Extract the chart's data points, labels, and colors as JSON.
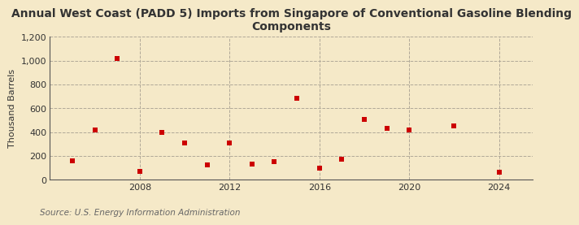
{
  "title": "Annual West Coast (PADD 5) Imports from Singapore of Conventional Gasoline Blending\nComponents",
  "ylabel": "Thousand Barrels",
  "source": "Source: U.S. Energy Information Administration",
  "background_color": "#f5e9c8",
  "plot_bg_color": "#f5e9c8",
  "marker_color": "#cc0000",
  "years": [
    2005,
    2006,
    2007,
    2008,
    2009,
    2010,
    2011,
    2012,
    2013,
    2014,
    2015,
    2016,
    2017,
    2018,
    2019,
    2020,
    2022,
    2024
  ],
  "values": [
    160,
    420,
    1020,
    70,
    400,
    310,
    125,
    310,
    135,
    150,
    685,
    100,
    175,
    505,
    430,
    415,
    455,
    65
  ],
  "xlim": [
    2004.0,
    2025.5
  ],
  "ylim": [
    0,
    1200
  ],
  "yticks": [
    0,
    200,
    400,
    600,
    800,
    1000,
    1200
  ],
  "ytick_labels": [
    "0",
    "200",
    "400",
    "600",
    "800",
    "1,000",
    "1,200"
  ],
  "xticks": [
    2008,
    2012,
    2016,
    2020,
    2024
  ],
  "grid_color": "#b0a898",
  "title_fontsize": 10,
  "label_fontsize": 8,
  "source_fontsize": 7.5
}
